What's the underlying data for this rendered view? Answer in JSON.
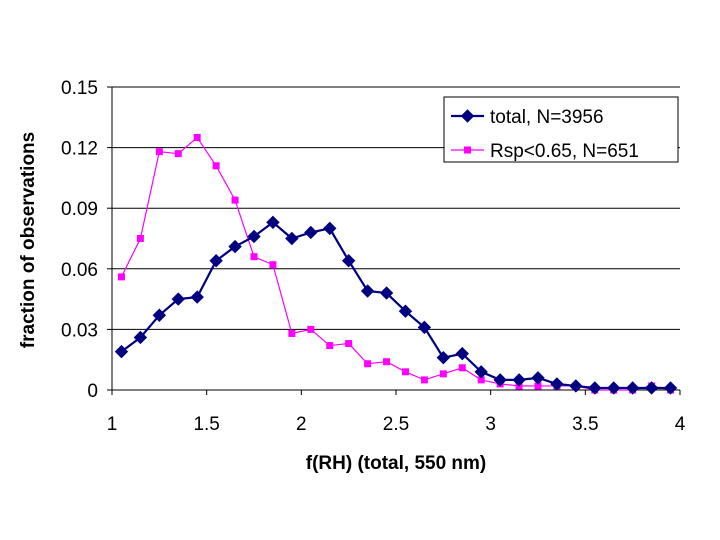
{
  "chart_data": {
    "type": "line",
    "xlabel": "f(RH) (total, 550 nm)",
    "ylabel": "fraction of observations",
    "xlim": [
      1,
      4
    ],
    "ylim": [
      0,
      0.15
    ],
    "x_ticks": [
      "1",
      "1.5",
      "2",
      "2.5",
      "3",
      "3.5",
      "4"
    ],
    "y_ticks": [
      "0",
      "0.03",
      "0.06",
      "0.09",
      "0.12",
      "0.15"
    ],
    "grid": "horizontal",
    "legend_position": "top-right",
    "series": [
      {
        "name": "total, N=3956",
        "color": "#000080",
        "marker": "diamond",
        "x": [
          1.05,
          1.15,
          1.25,
          1.35,
          1.45,
          1.55,
          1.65,
          1.75,
          1.85,
          1.95,
          2.05,
          2.15,
          2.25,
          2.35,
          2.45,
          2.55,
          2.65,
          2.75,
          2.85,
          2.95,
          3.05,
          3.15,
          3.25,
          3.35,
          3.45,
          3.55,
          3.65,
          3.75,
          3.85,
          3.95
        ],
        "y": [
          0.019,
          0.026,
          0.037,
          0.045,
          0.046,
          0.064,
          0.071,
          0.076,
          0.083,
          0.075,
          0.078,
          0.08,
          0.064,
          0.049,
          0.048,
          0.039,
          0.031,
          0.016,
          0.018,
          0.009,
          0.005,
          0.005,
          0.006,
          0.003,
          0.002,
          0.001,
          0.001,
          0.001,
          0.001,
          0.001
        ]
      },
      {
        "name": "Rsp<0.65, N=651",
        "color": "#FF00FF",
        "marker": "square",
        "x": [
          1.05,
          1.15,
          1.25,
          1.35,
          1.45,
          1.55,
          1.65,
          1.75,
          1.85,
          1.95,
          2.05,
          2.15,
          2.25,
          2.35,
          2.45,
          2.55,
          2.65,
          2.75,
          2.85,
          2.95,
          3.05,
          3.15,
          3.25,
          3.35,
          3.45,
          3.55,
          3.65,
          3.75,
          3.85,
          3.95
        ],
        "y": [
          0.056,
          0.075,
          0.118,
          0.117,
          0.125,
          0.111,
          0.094,
          0.066,
          0.062,
          0.028,
          0.03,
          0.022,
          0.023,
          0.013,
          0.014,
          0.009,
          0.005,
          0.008,
          0.011,
          0.005,
          0.003,
          0.002,
          0.002,
          0.002,
          0.002,
          0.0,
          0.0,
          0.0,
          0.002,
          0.0
        ]
      }
    ]
  }
}
